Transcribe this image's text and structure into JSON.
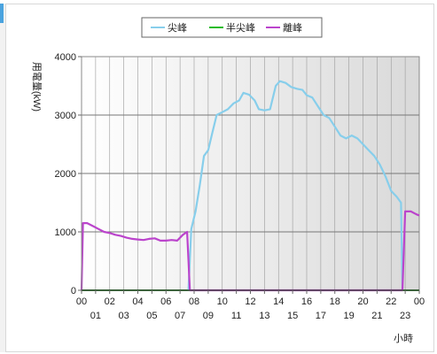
{
  "chart_data": {
    "type": "line",
    "xlabel": "小時",
    "ylabel": "用電量(kW)",
    "ylim": [
      0,
      4000
    ],
    "yticks": [
      "0",
      "1000",
      "2000",
      "3000",
      "4000"
    ],
    "xlim": [
      0,
      24
    ],
    "xticks_top": [
      "00",
      "02",
      "04",
      "06",
      "08",
      "10",
      "12",
      "14",
      "16",
      "18",
      "20",
      "22",
      "00"
    ],
    "xticks_bottom": [
      "01",
      "03",
      "05",
      "07",
      "09",
      "11",
      "13",
      "15",
      "17",
      "19",
      "21",
      "23"
    ],
    "grid": true,
    "legend_position": "top-center",
    "series": [
      {
        "name": "尖峰",
        "color": "#87CEEB",
        "points": [
          [
            7.6,
            0
          ],
          [
            7.8,
            1050
          ],
          [
            8.1,
            1350
          ],
          [
            8.4,
            1800
          ],
          [
            8.7,
            2300
          ],
          [
            9.0,
            2400
          ],
          [
            9.3,
            2700
          ],
          [
            9.6,
            3000
          ],
          [
            10.0,
            3050
          ],
          [
            10.4,
            3100
          ],
          [
            10.8,
            3200
          ],
          [
            11.2,
            3250
          ],
          [
            11.5,
            3380
          ],
          [
            11.9,
            3350
          ],
          [
            12.3,
            3250
          ],
          [
            12.6,
            3100
          ],
          [
            13.0,
            3080
          ],
          [
            13.4,
            3100
          ],
          [
            13.8,
            3500
          ],
          [
            14.1,
            3580
          ],
          [
            14.5,
            3550
          ],
          [
            14.9,
            3480
          ],
          [
            15.3,
            3450
          ],
          [
            15.7,
            3430
          ],
          [
            16.0,
            3340
          ],
          [
            16.4,
            3300
          ],
          [
            16.8,
            3150
          ],
          [
            17.2,
            3000
          ],
          [
            17.6,
            2950
          ],
          [
            18.0,
            2800
          ],
          [
            18.4,
            2650
          ],
          [
            18.8,
            2600
          ],
          [
            19.2,
            2650
          ],
          [
            19.6,
            2600
          ],
          [
            20.0,
            2500
          ],
          [
            20.4,
            2400
          ],
          [
            20.8,
            2300
          ],
          [
            21.2,
            2150
          ],
          [
            21.6,
            1950
          ],
          [
            22.0,
            1700
          ],
          [
            22.4,
            1600
          ],
          [
            22.7,
            1500
          ],
          [
            22.8,
            0
          ]
        ]
      },
      {
        "name": "半尖峰",
        "color": "#22BB22",
        "points": [
          [
            0,
            0
          ],
          [
            24,
            0
          ]
        ]
      },
      {
        "name": "離峰",
        "color": "#BB44CC",
        "points": [
          [
            0.0,
            0
          ],
          [
            0.1,
            1150
          ],
          [
            0.4,
            1150
          ],
          [
            0.8,
            1100
          ],
          [
            1.2,
            1050
          ],
          [
            1.6,
            1000
          ],
          [
            2.0,
            980
          ],
          [
            2.4,
            950
          ],
          [
            2.8,
            930
          ],
          [
            3.2,
            900
          ],
          [
            3.6,
            880
          ],
          [
            4.0,
            870
          ],
          [
            4.4,
            860
          ],
          [
            4.8,
            880
          ],
          [
            5.2,
            890
          ],
          [
            5.6,
            850
          ],
          [
            6.0,
            850
          ],
          [
            6.4,
            860
          ],
          [
            6.8,
            850
          ],
          [
            7.2,
            950
          ],
          [
            7.5,
            1000
          ],
          [
            7.7,
            0
          ],
          [
            22.8,
            0
          ],
          [
            23.0,
            1350
          ],
          [
            23.4,
            1350
          ],
          [
            23.8,
            1300
          ],
          [
            24.0,
            1280
          ]
        ]
      }
    ]
  }
}
